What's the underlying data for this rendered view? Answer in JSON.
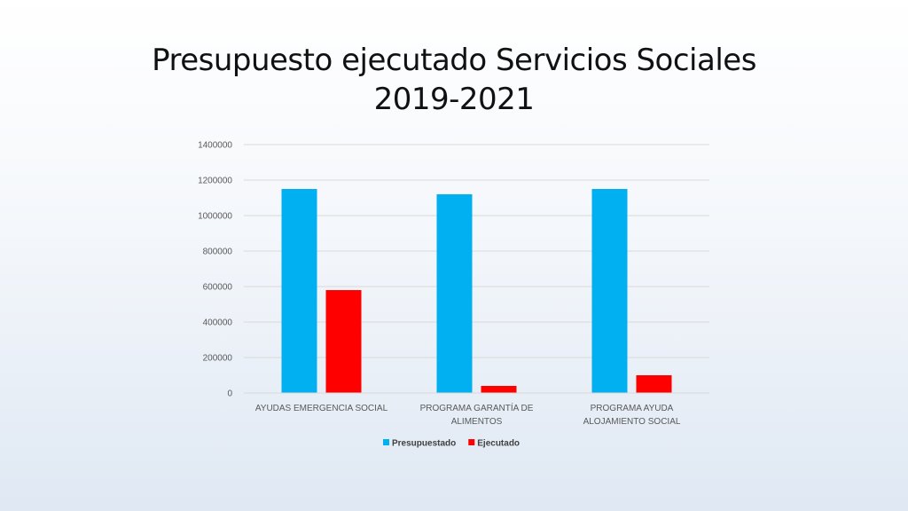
{
  "title": {
    "line1": "Presupuesto ejecutado Servicios Sociales",
    "line2": "2019-2021"
  },
  "chart_data": {
    "type": "bar",
    "categories": [
      [
        "AYUDAS EMERGENCIA SOCIAL"
      ],
      [
        "PROGRAMA GARANTÍA DE",
        "ALIMENTOS"
      ],
      [
        "PROGRAMA AYUDA",
        "ALOJAMIENTO SOCIAL"
      ]
    ],
    "series": [
      {
        "name": "Presupuestado",
        "color": "#00b0f0",
        "values": [
          1150000,
          1120000,
          1150000
        ]
      },
      {
        "name": "Ejecutado",
        "color": "#ff0000",
        "values": [
          580000,
          40000,
          100000
        ]
      }
    ],
    "yticks": [
      "0",
      "200000",
      "400000",
      "600000",
      "800000",
      "1000000",
      "1200000",
      "1400000"
    ],
    "ylim": [
      0,
      1400000
    ],
    "grid": true,
    "legend": "bottom"
  }
}
